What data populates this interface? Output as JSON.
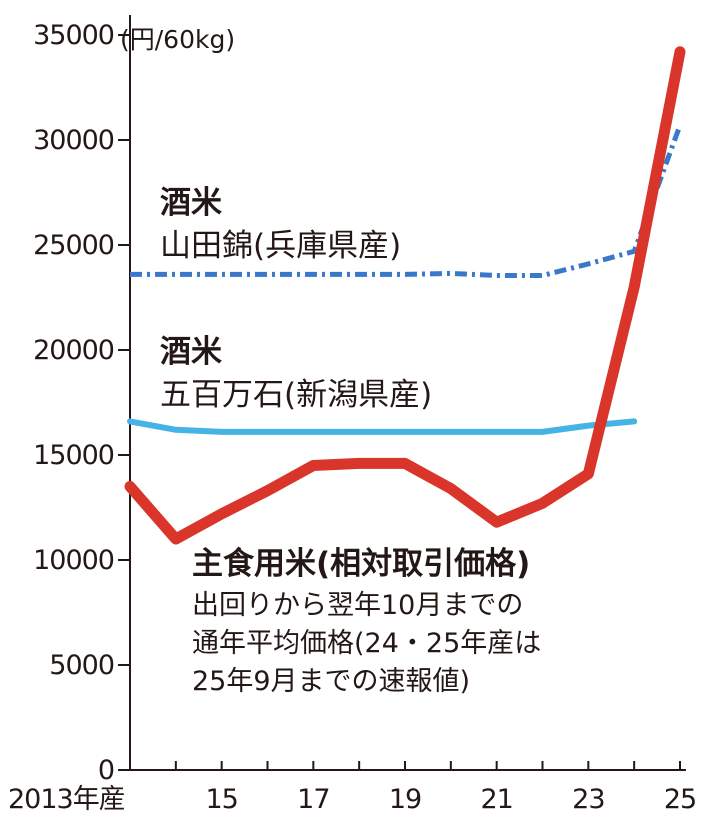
{
  "chart_data": {
    "type": "line",
    "unit_label": "(円/60kg)",
    "ylim": [
      0,
      35000
    ],
    "y_ticks": [
      0,
      5000,
      10000,
      15000,
      20000,
      25000,
      30000,
      35000
    ],
    "x_ticks": [
      {
        "year": 2013,
        "label": "2013年産"
      },
      {
        "year": 2015,
        "label": "15"
      },
      {
        "year": 2017,
        "label": "17"
      },
      {
        "year": 2019,
        "label": "19"
      },
      {
        "year": 2021,
        "label": "21"
      },
      {
        "year": 2023,
        "label": "23"
      },
      {
        "year": 2025,
        "label": "25"
      }
    ],
    "x": [
      2013,
      2014,
      2015,
      2016,
      2017,
      2018,
      2019,
      2020,
      2021,
      2022,
      2023,
      2024,
      2025
    ],
    "series": [
      {
        "name": "主食用米(相対取引価格)",
        "color": "#d9352b",
        "style": "solid-thick",
        "values": [
          13500,
          11000,
          12200,
          13300,
          14500,
          14600,
          14600,
          13400,
          11800,
          12700,
          14100,
          23000,
          34200
        ]
      },
      {
        "name": "山田錦(兵庫県産)",
        "color": "#3a78c9",
        "style": "dash-dot",
        "values": [
          23600,
          23600,
          23600,
          23600,
          23600,
          23600,
          23600,
          23650,
          23550,
          23550,
          24100,
          24700,
          30700
        ]
      },
      {
        "name": "五百万石(新潟県産)",
        "color": "#45b3e3",
        "style": "solid",
        "values": [
          16600,
          16200,
          16100,
          16100,
          16100,
          16100,
          16100,
          16100,
          16100,
          16100,
          16400,
          16600,
          null
        ]
      }
    ],
    "annotations": {
      "yamada": {
        "line1": "酒米",
        "line2": "山田錦(兵庫県産)"
      },
      "gohyaku": {
        "line1": "酒米",
        "line2": "五百万石(新潟県産)"
      },
      "rice": {
        "line1": "主食用米(相対取引価格)",
        "line2": "出回りから翌年10月までの",
        "line3": "通年平均価格(24・25年産は",
        "line4": "25年9月までの速報値)"
      }
    }
  }
}
